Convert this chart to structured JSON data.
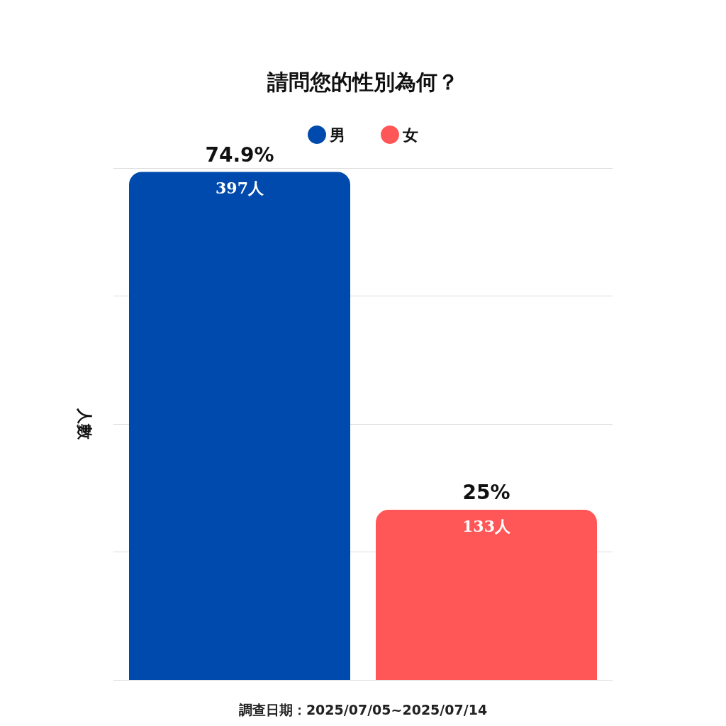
{
  "chart_data": {
    "type": "bar",
    "title": "請問您的性別為何？",
    "ylabel": "人數",
    "categories": [
      null
    ],
    "series": [
      {
        "name": "男",
        "color": "#004aad",
        "values": [
          397
        ],
        "value_labels": [
          "397人"
        ]
      },
      {
        "name": "女",
        "color": "#ff5757",
        "values": [
          133
        ],
        "value_labels": [
          "133人"
        ]
      }
    ],
    "ylim": [
      0,
      400
    ],
    "yticks": [
      {
        "value": 0,
        "label": null
      },
      {
        "value": 100,
        "label": null
      },
      {
        "value": 200,
        "label": null
      },
      {
        "value": 300,
        "label": null
      },
      {
        "value": 400,
        "label": null
      }
    ],
    "grid": "y",
    "legend": "top",
    "annotations": [
      {
        "text": "74.9%",
        "y": 397
      },
      {
        "text": "25%",
        "y": 133
      },
      "調查日期：2025/07/05~2025/07/14"
    ]
  }
}
